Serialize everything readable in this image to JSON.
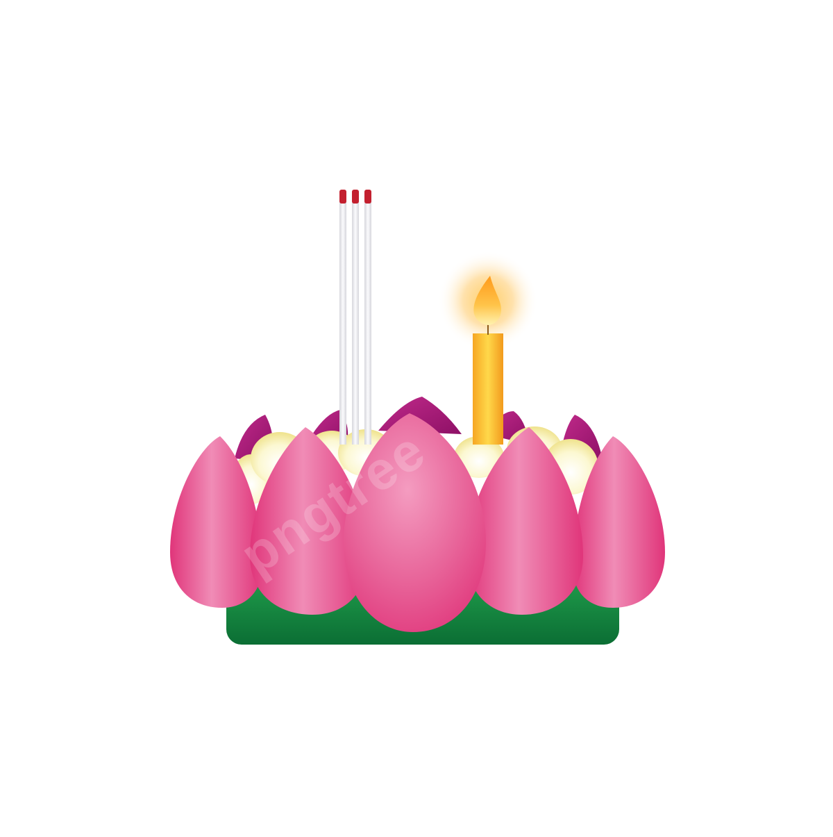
{
  "artwork": {
    "subject": "krathong",
    "watermark_text": "pngtree"
  },
  "colors": {
    "background": "#ffffff",
    "petal_pink": "#e2528a",
    "petal_pink_light": "#f08cb6",
    "petal_pink_deep": "#e0357a",
    "back_petal_magenta": "#b0187a",
    "bud_cream": "#fbf6c4",
    "base_green": "#0e7d3a",
    "candle_orange": "#f6a623",
    "candle_yellow": "#ffd84a",
    "flame": "#ffa01f",
    "incense_stick": "#e6e6ea",
    "incense_tip": "#c3202f"
  },
  "icons": {
    "candle": "candle-icon",
    "flame": "flame-icon",
    "incense": "incense-icon",
    "lotus": "lotus-icon"
  }
}
